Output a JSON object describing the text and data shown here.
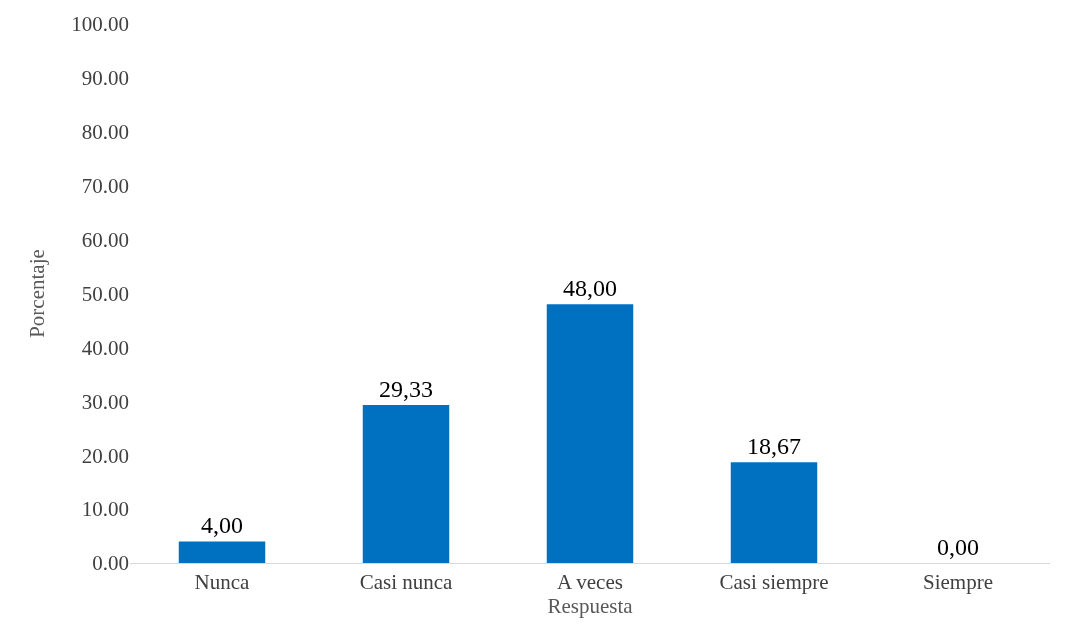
{
  "chart_data": {
    "type": "bar",
    "xlabel": "Respuesta",
    "ylabel": "Porcentaje",
    "categories": [
      "Nunca",
      "Casi nunca",
      "A veces",
      "Casi siempre",
      "Siempre"
    ],
    "values": [
      4,
      29.33,
      48,
      18.67,
      0
    ],
    "value_labels": [
      "4,00",
      "29,33",
      "48,00",
      "18,67",
      "0,00"
    ],
    "color": "#0070c0",
    "ylim": [
      0,
      100
    ],
    "yticks": [
      {
        "value": 0,
        "label": "0.00"
      },
      {
        "value": 10,
        "label": "10.00"
      },
      {
        "value": 20,
        "label": "20.00"
      },
      {
        "value": 30,
        "label": "30.00"
      },
      {
        "value": 40,
        "label": "40.00"
      },
      {
        "value": 50,
        "label": "50.00"
      },
      {
        "value": 60,
        "label": "60.00"
      },
      {
        "value": 70,
        "label": "70.00"
      },
      {
        "value": 80,
        "label": "80.00"
      },
      {
        "value": 90,
        "label": "90.00"
      },
      {
        "value": 100,
        "label": "100.00"
      }
    ],
    "grid": false
  }
}
